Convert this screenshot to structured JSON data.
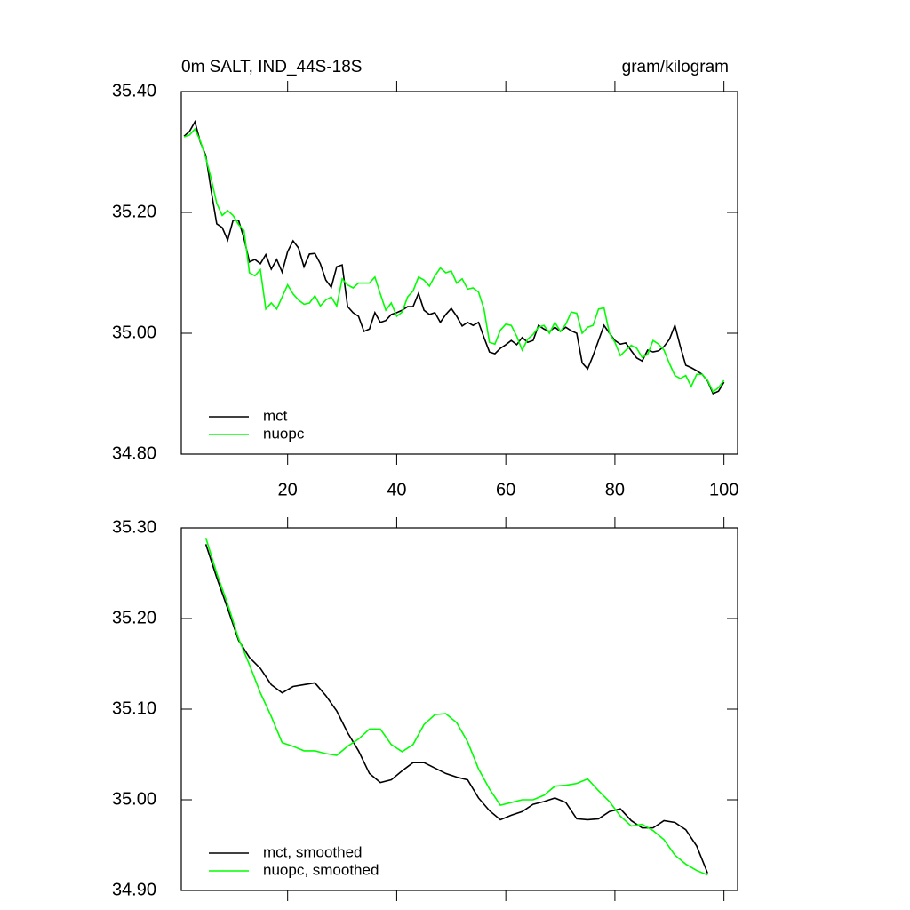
{
  "chart_data": [
    {
      "type": "line",
      "title": "0m SALT, IND_44S-18S",
      "subtitle": "gram/kilogram",
      "x": [
        1,
        2,
        3,
        4,
        5,
        6,
        7,
        8,
        9,
        10,
        11,
        12,
        13,
        14,
        15,
        16,
        17,
        18,
        19,
        20,
        21,
        22,
        23,
        24,
        25,
        26,
        27,
        28,
        29,
        30,
        31,
        32,
        33,
        34,
        35,
        36,
        37,
        38,
        39,
        40,
        41,
        42,
        43,
        44,
        45,
        46,
        47,
        48,
        49,
        50,
        51,
        52,
        53,
        54,
        55,
        56,
        57,
        58,
        59,
        60,
        61,
        62,
        63,
        64,
        65,
        66,
        67,
        68,
        69,
        70,
        71,
        72,
        73,
        74,
        75,
        76,
        77,
        78,
        79,
        80,
        81,
        82,
        83,
        84,
        85,
        86,
        87,
        88,
        89,
        90,
        91,
        92,
        93,
        94,
        95,
        96,
        97,
        98,
        99,
        100
      ],
      "series": [
        {
          "name": "mct",
          "color": "#000000",
          "values": [
            35.326,
            35.334,
            35.35,
            35.316,
            35.294,
            35.235,
            35.181,
            35.175,
            35.154,
            35.187,
            35.187,
            35.157,
            35.118,
            35.122,
            35.115,
            35.13,
            35.106,
            35.122,
            35.101,
            35.135,
            35.153,
            35.141,
            35.11,
            35.131,
            35.132,
            35.115,
            35.088,
            35.076,
            35.11,
            35.113,
            35.044,
            35.034,
            35.028,
            35.003,
            35.007,
            35.034,
            35.018,
            35.021,
            35.031,
            35.034,
            35.038,
            35.044,
            35.044,
            35.066,
            35.038,
            35.031,
            35.034,
            35.018,
            35.031,
            35.041,
            35.028,
            35.012,
            35.018,
            35.013,
            35.018,
            34.993,
            34.969,
            34.966,
            34.975,
            34.981,
            34.988,
            34.981,
            34.993,
            34.985,
            34.988,
            35.013,
            35.007,
            35.003,
            35.01,
            35.003,
            35.01,
            35.004,
            35.0,
            34.951,
            34.941,
            34.963,
            34.988,
            35.013,
            35.0,
            34.988,
            34.982,
            34.984,
            34.971,
            34.959,
            34.954,
            34.972,
            34.969,
            34.971,
            34.978,
            34.99,
            35.013,
            34.978,
            34.947,
            34.943,
            34.938,
            34.932,
            34.921,
            34.9,
            34.904,
            34.919
          ]
        },
        {
          "name": "nuopc",
          "color": "#00ff00",
          "values": [
            35.325,
            35.328,
            35.338,
            35.318,
            35.29,
            35.255,
            35.215,
            35.195,
            35.203,
            35.195,
            35.18,
            35.17,
            35.1,
            35.095,
            35.105,
            35.04,
            35.05,
            35.04,
            35.06,
            35.08,
            35.065,
            35.055,
            35.048,
            35.05,
            35.062,
            35.045,
            35.055,
            35.06,
            35.045,
            35.09,
            35.08,
            35.075,
            35.083,
            35.083,
            35.083,
            35.093,
            35.065,
            35.038,
            35.05,
            35.028,
            35.035,
            35.06,
            35.07,
            35.093,
            35.088,
            35.078,
            35.095,
            35.108,
            35.1,
            35.103,
            35.083,
            35.09,
            35.073,
            35.075,
            35.068,
            35.04,
            34.985,
            34.982,
            35.005,
            35.015,
            35.013,
            34.995,
            34.972,
            34.99,
            34.998,
            35.01,
            35.013,
            35.0,
            35.018,
            35.003,
            35.015,
            35.035,
            35.033,
            35.0,
            35.01,
            35.013,
            35.04,
            35.042,
            35.0,
            34.985,
            34.963,
            34.972,
            34.98,
            34.975,
            34.96,
            34.965,
            34.988,
            34.982,
            34.972,
            34.95,
            34.93,
            34.925,
            34.93,
            34.912,
            34.932,
            34.932,
            34.922,
            34.903,
            34.91,
            34.922
          ]
        }
      ],
      "xlim": [
        0.5,
        102.5
      ],
      "xticks": [
        20,
        40,
        60,
        80,
        100
      ],
      "ylim": [
        34.8,
        35.4
      ],
      "yticks": [
        {
          "value": 34.8,
          "label": "34.80"
        },
        {
          "value": 35.0,
          "label": "35.00"
        },
        {
          "value": 35.2,
          "label": "35.20"
        },
        {
          "value": 35.4,
          "label": "35.40"
        }
      ],
      "legend": "lower left"
    },
    {
      "type": "line",
      "x": [
        5,
        7,
        9,
        11,
        13,
        15,
        17,
        19,
        21,
        23,
        25,
        27,
        29,
        31,
        33,
        35,
        37,
        39,
        41,
        43,
        45,
        47,
        49,
        51,
        53,
        55,
        57,
        59,
        61,
        63,
        65,
        67,
        69,
        71,
        73,
        75,
        77,
        79,
        81,
        83,
        85,
        87,
        89,
        91,
        93,
        95,
        97
      ],
      "series": [
        {
          "name": "mct, smoothed",
          "color": "#000000",
          "values": [
            35.282,
            35.245,
            35.211,
            35.176,
            35.157,
            35.145,
            35.127,
            35.118,
            35.125,
            35.127,
            35.129,
            35.115,
            35.098,
            35.074,
            35.054,
            35.029,
            35.019,
            35.022,
            35.032,
            35.041,
            35.041,
            35.035,
            35.029,
            35.025,
            35.022,
            35.002,
            34.988,
            34.978,
            34.983,
            34.987,
            34.995,
            34.998,
            35.002,
            34.997,
            34.979,
            34.978,
            34.979,
            34.987,
            34.99,
            34.977,
            34.969,
            34.969,
            34.977,
            34.975,
            34.967,
            34.949,
            34.919
          ]
        },
        {
          "name": "nuopc, smoothed",
          "color": "#00ff00",
          "values": [
            35.289,
            35.25,
            35.216,
            35.178,
            35.149,
            35.118,
            35.092,
            35.063,
            35.059,
            35.054,
            35.054,
            35.051,
            35.049,
            35.059,
            35.067,
            35.078,
            35.078,
            35.061,
            35.053,
            35.061,
            35.083,
            35.094,
            35.095,
            35.085,
            35.064,
            35.034,
            35.012,
            34.994,
            34.997,
            35.0,
            35.0,
            35.005,
            35.015,
            35.016,
            35.018,
            35.023,
            35.01,
            34.998,
            34.982,
            34.971,
            34.973,
            34.966,
            34.956,
            34.939,
            34.929,
            34.922,
            34.917
          ]
        }
      ],
      "xlim": [
        0.5,
        102.5
      ],
      "xticks": [
        20,
        40,
        60,
        80,
        100
      ],
      "ylim": [
        34.9,
        35.3
      ],
      "yticks": [
        {
          "value": 34.9,
          "label": "34.90"
        },
        {
          "value": 35.0,
          "label": "35.00"
        },
        {
          "value": 35.1,
          "label": "35.10"
        },
        {
          "value": 35.2,
          "label": "35.20"
        },
        {
          "value": 35.3,
          "label": "35.30"
        }
      ],
      "legend": "lower left"
    }
  ]
}
